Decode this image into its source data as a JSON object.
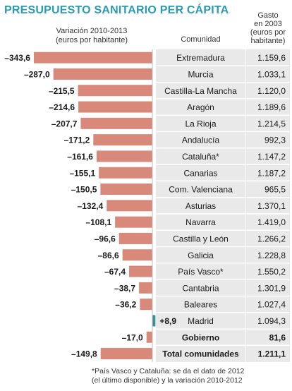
{
  "title": "PRESUPUESTO SANITARIO PER CÁPITA",
  "headers": {
    "variation": [
      "Variación 2010-2013",
      "(euros por habitante)"
    ],
    "community": "Comunidad",
    "spending": [
      "Gasto",
      "en 2003",
      "(euros por",
      "habitante)"
    ]
  },
  "chart_data": {
    "type": "bar",
    "orientation": "horizontal",
    "categories": [
      "Extremadura",
      "Murcia",
      "Castilla-La Mancha",
      "Aragón",
      "La Rioja",
      "Andalucía",
      "Cataluña*",
      "Canarias",
      "Com. Valenciana",
      "Asturias",
      "Navarra",
      "Castilla y León",
      "Galicia",
      "País Vasco*",
      "Cantabria",
      "Baleares",
      "Madrid",
      "Gobierno",
      "Total comunidades"
    ],
    "values": [
      -343.6,
      -287.0,
      -215.5,
      -214.6,
      -207.7,
      -171.2,
      -161.6,
      -155.1,
      -150.5,
      -132.4,
      -108.1,
      -96.6,
      -86.6,
      -67.4,
      -38.7,
      -36.2,
      8.9,
      -17.0,
      -149.8
    ],
    "value_labels": [
      "–343,6",
      "–287,0",
      "–215,5",
      "–214,6",
      "–207,7",
      "–171,2",
      "–161,6",
      "–155,1",
      "–150,5",
      "–132,4",
      "–108,1",
      "–96,6",
      "–86,6",
      "–67,4",
      "–38,7",
      "–36,2",
      "+8,9",
      "–17,0",
      "–149,8"
    ],
    "spending_2003": [
      "1.159,6",
      "1.033,1",
      "1.120,0",
      "1.189,6",
      "1.214,5",
      "992,3",
      "1.147,2",
      "1.187,2",
      "965,5",
      "1.370,1",
      "1.419,0",
      "1.266,2",
      "1.228,8",
      "1.550,2",
      "1.301,9",
      "1.027,4",
      "1.094,3",
      "81,6",
      "1.211,1"
    ],
    "bold_rows": [
      "Gobierno",
      "Total comunidades"
    ],
    "colors": {
      "negative": "#d9897a",
      "positive": "#3d8f94"
    }
  },
  "footnote": [
    "*País Vasco y Cataluña: se da el dato de 2012",
    "(el último disponible) y la variación 2010-2012"
  ]
}
